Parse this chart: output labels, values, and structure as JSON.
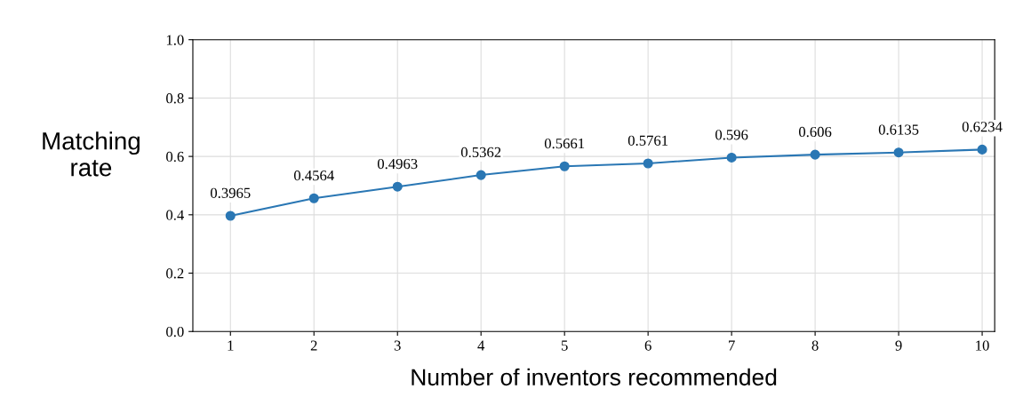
{
  "chart_data": {
    "type": "line",
    "xlabel": "Number of inventors recommended",
    "ylabel": "Matching\nrate",
    "x": [
      1,
      2,
      3,
      4,
      5,
      6,
      7,
      8,
      9,
      10
    ],
    "series": [
      {
        "color": "#2a77b4",
        "values": [
          0.3965,
          0.4564,
          0.4963,
          0.5362,
          0.5661,
          0.5761,
          0.596,
          0.606,
          0.6135,
          0.6234
        ]
      }
    ],
    "xlim": [
      0.55,
      10.15
    ],
    "xticks": [
      1,
      2,
      3,
      4,
      5,
      6,
      7,
      8,
      9,
      10
    ],
    "ylim": [
      0,
      1.0
    ],
    "yticks": [
      {
        "value": 0,
        "label": "0.0"
      },
      {
        "value": 0.2,
        "label": "0.2"
      },
      {
        "value": 0.4,
        "label": "0.4"
      },
      {
        "value": 0.6,
        "label": "0.6"
      },
      {
        "value": 0.8,
        "label": "0.8"
      },
      {
        "value": 1.0,
        "label": "1.0"
      }
    ],
    "grid": true,
    "marker": "circle",
    "line_style": "solid",
    "data_labels": true
  }
}
